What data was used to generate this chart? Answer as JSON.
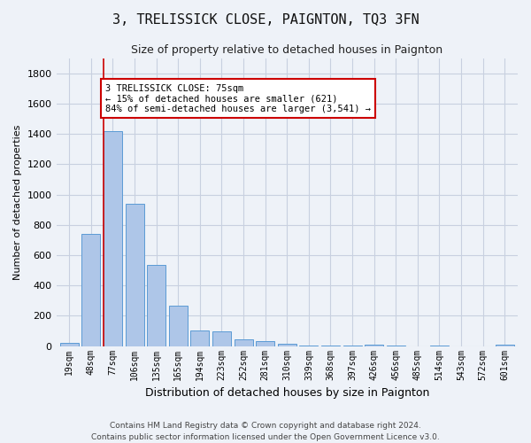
{
  "title": "3, TRELISSICK CLOSE, PAIGNTON, TQ3 3FN",
  "subtitle": "Size of property relative to detached houses in Paignton",
  "xlabel": "Distribution of detached houses by size in Paignton",
  "ylabel": "Number of detached properties",
  "bar_labels": [
    "19sqm",
    "48sqm",
    "77sqm",
    "106sqm",
    "135sqm",
    "165sqm",
    "194sqm",
    "223sqm",
    "252sqm",
    "281sqm",
    "310sqm",
    "339sqm",
    "368sqm",
    "397sqm",
    "426sqm",
    "456sqm",
    "485sqm",
    "514sqm",
    "543sqm",
    "572sqm",
    "601sqm"
  ],
  "bar_values": [
    22,
    740,
    1420,
    940,
    535,
    265,
    105,
    95,
    42,
    32,
    18,
    5,
    5,
    2,
    12,
    2,
    0,
    2,
    0,
    0,
    12
  ],
  "bar_color": "#aec6e8",
  "bar_edge_color": "#5b9bd5",
  "highlight_index": 2,
  "highlight_color": "#cc0000",
  "annotation_text": "3 TRELISSICK CLOSE: 75sqm\n← 15% of detached houses are smaller (621)\n84% of semi-detached houses are larger (3,541) →",
  "annotation_box_edge": "#cc0000",
  "ylim": [
    0,
    1900
  ],
  "yticks": [
    0,
    200,
    400,
    600,
    800,
    1000,
    1200,
    1400,
    1600,
    1800
  ],
  "grid_color": "#c8d0e0",
  "background_color": "#eef2f8",
  "footer_line1": "Contains HM Land Registry data © Crown copyright and database right 2024.",
  "footer_line2": "Contains public sector information licensed under the Open Government Licence v3.0."
}
